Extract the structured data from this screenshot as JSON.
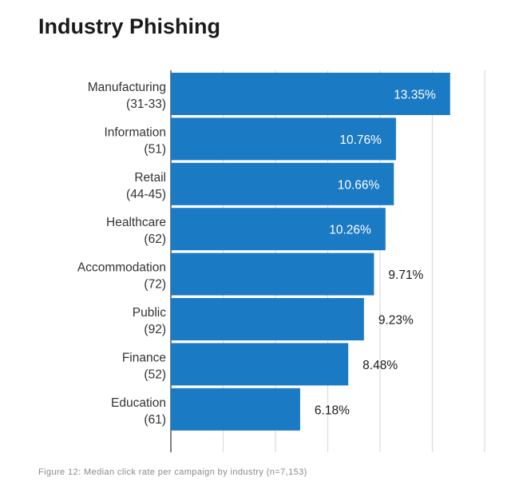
{
  "page": {
    "title": "Industry Phishing",
    "caption": "Figure 12: Median click rate per campaign by industry (n=7,153)"
  },
  "colors": {
    "bar": "#1a7ac4",
    "grid": "#dcdcdc",
    "axis": "#555555",
    "label_inside": "#ffffff",
    "label_outside": "#1a1a1a"
  },
  "chart_data": {
    "type": "bar",
    "orientation": "horizontal",
    "title": "Industry Phishing",
    "categories": [
      {
        "name": "Manufacturing",
        "code": "(31-33)"
      },
      {
        "name": "Information",
        "code": "(51)"
      },
      {
        "name": "Retail",
        "code": "(44-45)"
      },
      {
        "name": "Healthcare",
        "code": "(62)"
      },
      {
        "name": "Accommodation",
        "code": "(72)"
      },
      {
        "name": "Public",
        "code": "(92)"
      },
      {
        "name": "Finance",
        "code": "(52)"
      },
      {
        "name": "Education",
        "code": "(61)"
      }
    ],
    "values": [
      13.35,
      10.76,
      10.66,
      10.26,
      9.71,
      9.23,
      8.48,
      6.18
    ],
    "value_labels": [
      "13.35%",
      "10.76%",
      "10.66%",
      "10.26%",
      "9.71%",
      "9.23%",
      "8.48%",
      "6.18%"
    ],
    "xlim": [
      0,
      15
    ],
    "grid_step": 2.5,
    "grid": true,
    "tick_labels_shown": false,
    "legend": "none"
  }
}
